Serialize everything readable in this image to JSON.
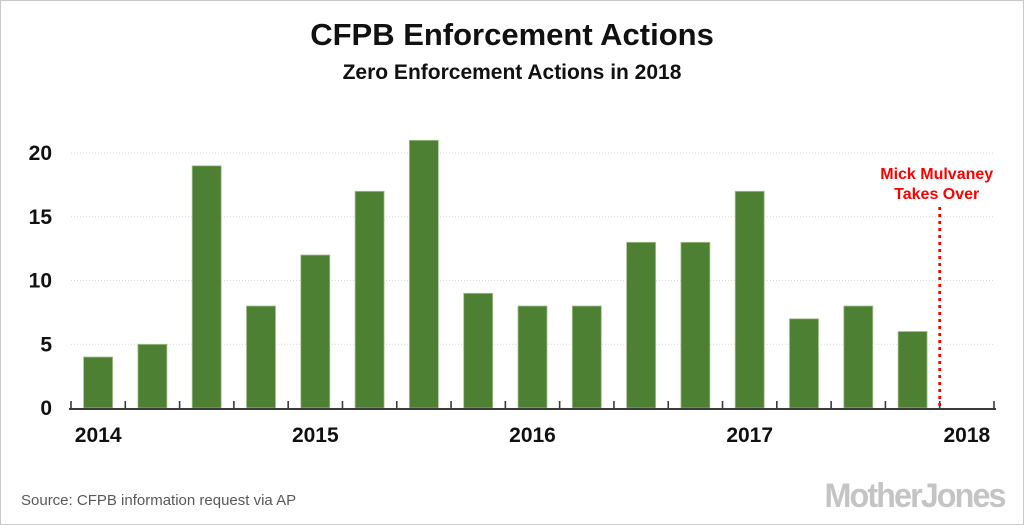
{
  "header": {
    "title": "CFPB Enforcement Actions",
    "subtitle": "Zero Enforcement Actions in 2018"
  },
  "chart_data": {
    "type": "bar",
    "title": "CFPB Enforcement Actions",
    "subtitle": "Zero Enforcement Actions in 2018",
    "categories": [
      "Q1 2014",
      "Q2 2014",
      "Q3 2014",
      "Q4 2014",
      "Q1 2015",
      "Q2 2015",
      "Q3 2015",
      "Q4 2015",
      "Q1 2016",
      "Q2 2016",
      "Q3 2016",
      "Q4 2016",
      "Q1 2017",
      "Q2 2017",
      "Q3 2017",
      "Q4 2017"
    ],
    "values": [
      4,
      5,
      19,
      8,
      12,
      17,
      21,
      9,
      8,
      8,
      13,
      13,
      17,
      7,
      8,
      6
    ],
    "xlabel": "",
    "ylabel": "",
    "x_year_labels": [
      "2014",
      "2015",
      "2016",
      "2017",
      "2018"
    ],
    "x_year_slot_index": [
      0,
      4,
      8,
      12,
      16
    ],
    "total_slots": 17,
    "y_ticks": [
      0,
      5,
      10,
      15,
      20
    ],
    "ylim": [
      0,
      22
    ],
    "grid": "horizontal-dotted",
    "legend": "none",
    "bar_color": "#4e8034",
    "bar_edge_color": "#a6c18e",
    "axis_color": "#3a3a3a",
    "grid_color": "#d9d9d9",
    "label_color": "#111111",
    "annotation": {
      "line1": "Mick Mulvaney",
      "line2": "Takes Over",
      "color": "#fe0000",
      "line_style": "dotted-vertical",
      "at_slot_boundary": 16
    }
  },
  "footer": {
    "source": "Source: CFPB information request via AP",
    "brand": "MotherJones"
  }
}
